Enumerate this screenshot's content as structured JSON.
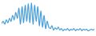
{
  "chart_data": {
    "type": "line",
    "x": [
      0,
      2,
      4,
      6,
      8,
      10,
      12,
      14,
      16,
      18,
      20,
      22,
      24,
      26,
      28,
      30,
      32,
      34,
      36,
      38,
      40,
      42,
      44,
      46,
      48,
      50,
      52,
      54,
      56,
      58,
      60,
      62,
      64,
      66,
      68,
      70,
      72,
      74,
      76,
      78,
      80,
      82,
      84,
      86,
      88,
      90,
      92,
      94,
      96,
      98,
      100,
      102,
      104,
      106,
      108,
      110,
      112,
      114,
      116,
      118
    ],
    "values": [
      15,
      18,
      14,
      20,
      16,
      22,
      18,
      26,
      20,
      30,
      22,
      36,
      14,
      38,
      16,
      40,
      18,
      42,
      16,
      43,
      14,
      40,
      18,
      38,
      12,
      32,
      10,
      26,
      8,
      18,
      10,
      8,
      12,
      6,
      9,
      7,
      10,
      6,
      8,
      5,
      7,
      6,
      8,
      5,
      7,
      6,
      8,
      5,
      7,
      6,
      8,
      5,
      7,
      6,
      7,
      5,
      6,
      7,
      6,
      7
    ],
    "color": "#4a9fd8",
    "xlim": [
      0,
      118
    ],
    "ylim": [
      0,
      45
    ],
    "grid": false,
    "tick_labels": false
  }
}
